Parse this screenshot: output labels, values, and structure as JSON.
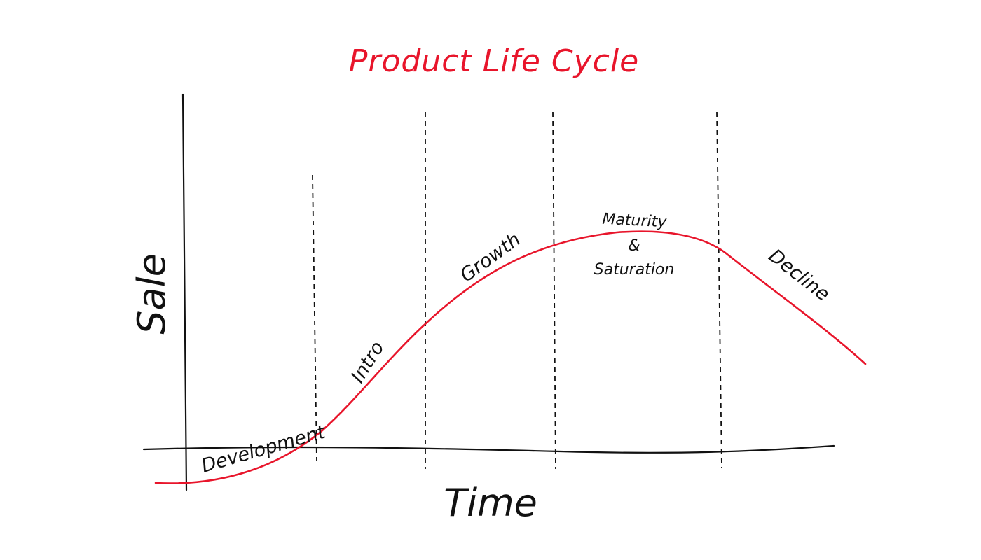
{
  "title": "Product Life Cycle",
  "axes": {
    "x_label": "Time",
    "y_label": "Sale"
  },
  "stages": {
    "development": "Development",
    "intro": "Intro",
    "growth": "Growth",
    "maturity_line1": "Maturity",
    "maturity_line2": "&",
    "maturity_line3": "Saturation",
    "decline": "Decline"
  },
  "colors": {
    "curve": "#e8152b",
    "title": "#e8152b",
    "ink": "#111111"
  }
}
